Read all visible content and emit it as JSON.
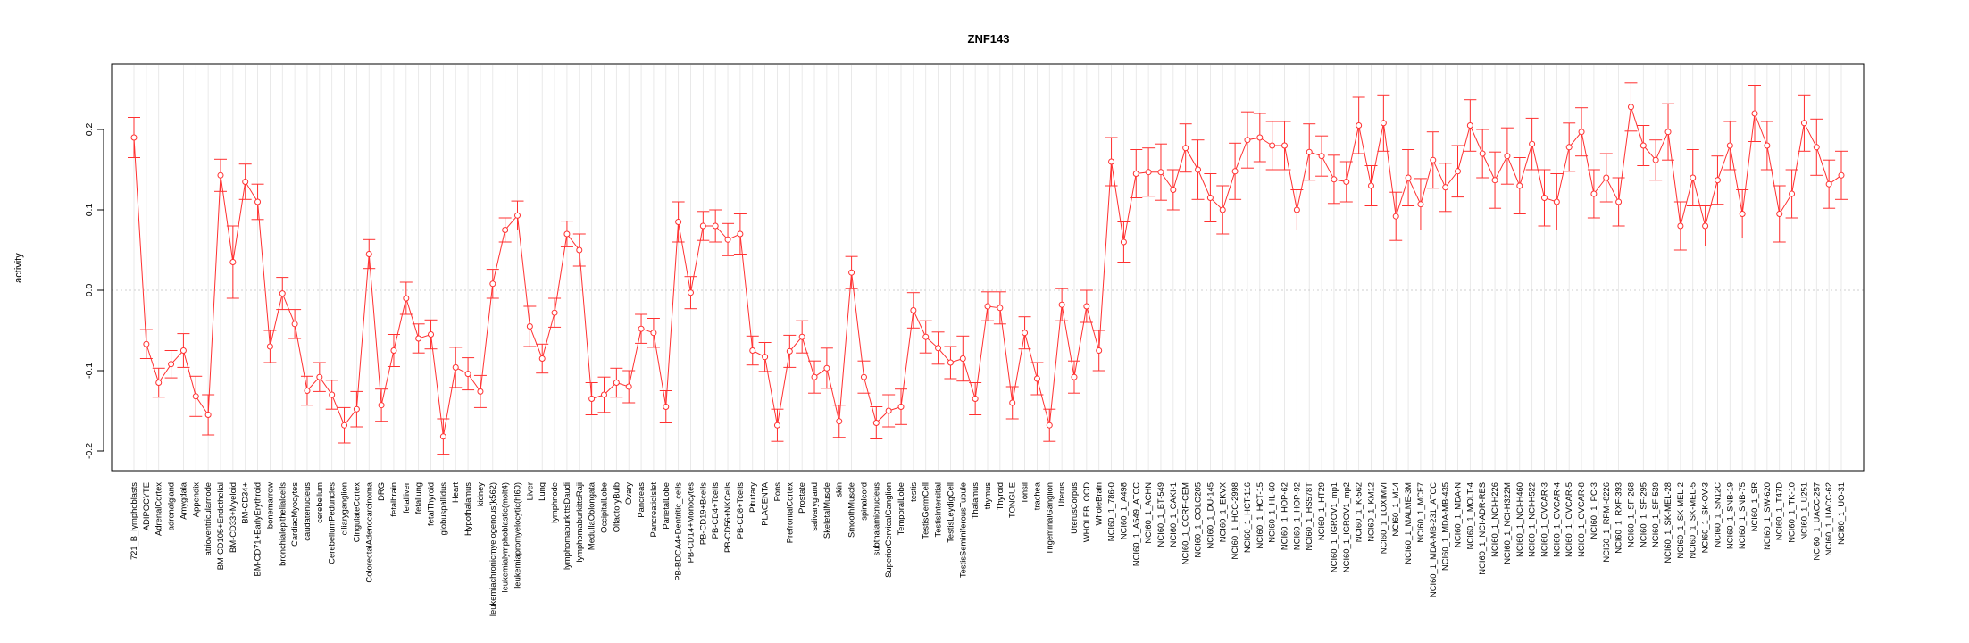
{
  "chart_data": {
    "type": "line",
    "title": "ZNF143",
    "xlabel": "",
    "ylabel": "activity",
    "ylim": [
      -0.22,
      0.28
    ],
    "yticks": [
      -0.2,
      -0.1,
      0.0,
      0.1,
      0.2
    ],
    "ytick_labels": [
      "-0.2",
      "-0.1",
      "0.0",
      "0.1",
      "0.2"
    ],
    "grid": true,
    "series_color": "#ff3030",
    "categories": [
      "721_B_lymphoblasts",
      "ADIPOCYTE",
      "AdrenalCortex",
      "adrenalgland",
      "Amygdala",
      "Appendix",
      "atrioventricularnode",
      "BM-CD105+Endothelial",
      "BM-CD33+Myeloid",
      "BM-CD34+",
      "BM-CD71+EarlyErythroid",
      "bonemarrow",
      "bronchialepithelialcells",
      "CardiacMyocytes",
      "caudatenucleus",
      "cerebellum",
      "CerebellumPeduncles",
      "ciliaryganglion",
      "CingulateCortex",
      "ColorectalAdenocarcinoma",
      "DRG",
      "fetalbrain",
      "fetalliver",
      "fetallung",
      "fetalThyroid",
      "globuspallidus",
      "Heart",
      "Hypothalamus",
      "kidney",
      "leukemiachronicmyelogenous(k562)",
      "leukemialymphoblastic(molt4)",
      "leukemiapromyelocytic(hl60)",
      "Liver",
      "Lung",
      "lymphnode",
      "lymphomaburkittsDaudi",
      "lymphomaburkittsRaji",
      "MedullaOblongata",
      "OccipitalLobe",
      "OlfactoryBulb",
      "Ovary",
      "Pancreas",
      "PancreaticIslet",
      "ParietalLobe",
      "PB-BDCA4+Dentritic_cells",
      "PB-CD14+Monocytes",
      "PB-CD19+Bcells",
      "PB-CD4+Tcells",
      "PB-CD56+NKCells",
      "PB-CD8+Tcells",
      "Pituitary",
      "PLACENTA",
      "Pons",
      "PrefrontalCortex",
      "Prostate",
      "salivarygland",
      "SkeletalMuscle",
      "skin",
      "SmoothMuscle",
      "spinalcord",
      "subthalamicnucleus",
      "SuperiorCervicalGanglion",
      "TemporalLobe",
      "testis",
      "TestisGermCell",
      "TestisIntersitial",
      "TestisLeydigCell",
      "TestisSeminiferousTubule",
      "Thalamus",
      "thymus",
      "Thyroid",
      "TONGUE",
      "Tonsil",
      "trachea",
      "TrigeminalGanglion",
      "Uterus",
      "UterusCorpus",
      "WHOLEBLOOD",
      "WholeBrain",
      "NCI60_1_786-0",
      "NCI60_1_A498",
      "NCI60_1_A549_ATCC",
      "NCI60_1_ACHN",
      "NCI60_1_BT-549",
      "NCI60_1_CAKI-1",
      "NCI60_1_CCRF-CEM",
      "NCI60_1_COLO205",
      "NCI60_1_DU-145",
      "NCI60_1_EKVX",
      "NCI60_1_HCC-2998",
      "NCI60_1_HCT-116",
      "NCI60_1_HCT-15",
      "NCI60_1_HL-60",
      "NCI60_1_HOP-62",
      "NCI60_1_HOP-92",
      "NCI60_1_HS578T",
      "NCI60_1_HT29",
      "NCI60_1_IGROV1_mp1",
      "NCI60_1_IGROV1_mp2",
      "NCI60_1_K-562",
      "NCI60_1_KM12",
      "NCI60_1_LOXIMVI",
      "NCI60_1_M14",
      "NCI60_1_MALME-3M",
      "NCI60_1_MCF7",
      "NCI60_1_MDA-MB-231_ATCC",
      "NCI60_1_MDA-MB-435",
      "NCI60_1_MDA-N",
      "NCI60_1_MOLT-4",
      "NCI60_1_NCI-ADR-RES",
      "NCI60_1_NCI-H226",
      "NCI60_1_NCI-H322M",
      "NCI60_1_NCI-H460",
      "NCI60_1_NCI-H522",
      "NCI60_1_OVCAR-3",
      "NCI60_1_OVCAR-4",
      "NCI60_1_OVCAR-5",
      "NCI60_1_OVCAR-8",
      "NCI60_1_PC-3",
      "NCI60_1_RPMI-8226",
      "NCI60_1_RXF-393",
      "NCI60_1_SF-268",
      "NCI60_1_SF-295",
      "NCI60_1_SF-539",
      "NCI60_1_SK-MEL-28",
      "NCI60_1_SK-MEL-2",
      "NCI60_1_SK-MEL-5",
      "NCI60_1_SK-OV-3",
      "NCI60_1_SN12C",
      "NCI60_1_SNB-19",
      "NCI60_1_SNB-75",
      "NCI60_1_SR",
      "NCI60_1_SW-620",
      "NCI60_1_T47D",
      "NCI60_1_TK-10",
      "NCI60_1_U251",
      "NCI60_1_UACC-257",
      "NCI60_1_UACC-62",
      "NCI60_1_UO-31"
    ],
    "values": [
      0.19,
      -0.067,
      -0.115,
      -0.092,
      -0.075,
      -0.132,
      -0.155,
      0.143,
      0.035,
      0.135,
      0.11,
      -0.07,
      -0.004,
      -0.042,
      -0.125,
      -0.108,
      -0.13,
      -0.168,
      -0.148,
      0.045,
      -0.143,
      -0.075,
      -0.01,
      -0.06,
      -0.055,
      -0.182,
      -0.096,
      -0.104,
      -0.126,
      0.008,
      0.075,
      0.093,
      -0.045,
      -0.085,
      -0.028,
      0.07,
      0.05,
      -0.135,
      -0.13,
      -0.115,
      -0.12,
      -0.048,
      -0.053,
      -0.145,
      0.085,
      -0.003,
      0.08,
      0.08,
      0.063,
      0.07,
      -0.075,
      -0.083,
      -0.168,
      -0.076,
      -0.058,
      -0.108,
      -0.097,
      -0.163,
      0.022,
      -0.108,
      -0.165,
      -0.15,
      -0.145,
      -0.025,
      -0.058,
      -0.072,
      -0.09,
      -0.085,
      -0.135,
      -0.02,
      -0.022,
      -0.14,
      -0.053,
      -0.11,
      -0.168,
      -0.018,
      -0.108,
      -0.02,
      -0.075,
      0.16,
      0.06,
      0.145,
      0.147,
      0.147,
      0.125,
      0.177,
      0.15,
      0.115,
      0.1,
      0.148,
      0.187,
      0.19,
      0.18,
      0.18,
      0.1,
      0.172,
      0.167,
      0.138,
      0.135,
      0.205,
      0.13,
      0.208,
      0.092,
      0.14,
      0.107,
      0.162,
      0.128,
      0.148,
      0.205,
      0.17,
      0.137,
      0.167,
      0.13,
      0.182,
      0.115,
      0.11,
      0.178,
      0.197,
      0.12,
      0.14,
      0.11,
      0.228,
      0.18,
      0.162,
      0.197,
      0.08,
      0.14,
      0.08,
      0.137,
      0.18,
      0.095,
      0.22,
      0.18,
      0.095,
      0.12,
      0.208,
      0.178,
      0.132,
      0.143
    ],
    "errors": [
      0.025,
      0.018,
      0.018,
      0.017,
      0.021,
      0.025,
      0.025,
      0.02,
      0.045,
      0.022,
      0.022,
      0.02,
      0.02,
      0.018,
      0.018,
      0.018,
      0.018,
      0.022,
      0.022,
      0.018,
      0.02,
      0.02,
      0.02,
      0.018,
      0.018,
      0.022,
      0.025,
      0.02,
      0.02,
      0.018,
      0.015,
      0.018,
      0.025,
      0.018,
      0.018,
      0.016,
      0.02,
      0.02,
      0.022,
      0.018,
      0.02,
      0.018,
      0.018,
      0.02,
      0.025,
      0.02,
      0.018,
      0.02,
      0.02,
      0.025,
      0.018,
      0.018,
      0.02,
      0.02,
      0.02,
      0.02,
      0.025,
      0.02,
      0.02,
      0.02,
      0.02,
      0.02,
      0.022,
      0.022,
      0.02,
      0.02,
      0.02,
      0.028,
      0.02,
      0.018,
      0.02,
      0.02,
      0.02,
      0.02,
      0.02,
      0.02,
      0.02,
      0.02,
      0.025,
      0.03,
      0.025,
      0.03,
      0.03,
      0.035,
      0.025,
      0.03,
      0.037,
      0.03,
      0.03,
      0.035,
      0.035,
      0.03,
      0.03,
      0.03,
      0.025,
      0.035,
      0.025,
      0.03,
      0.025,
      0.035,
      0.025,
      0.035,
      0.03,
      0.035,
      0.032,
      0.035,
      0.03,
      0.032,
      0.032,
      0.03,
      0.035,
      0.035,
      0.035,
      0.032,
      0.035,
      0.035,
      0.03,
      0.03,
      0.03,
      0.03,
      0.03,
      0.03,
      0.025,
      0.025,
      0.035,
      0.03,
      0.035,
      0.025,
      0.03,
      0.03,
      0.03,
      0.035,
      0.03,
      0.035,
      0.03,
      0.035,
      0.035,
      0.03,
      0.03
    ]
  }
}
